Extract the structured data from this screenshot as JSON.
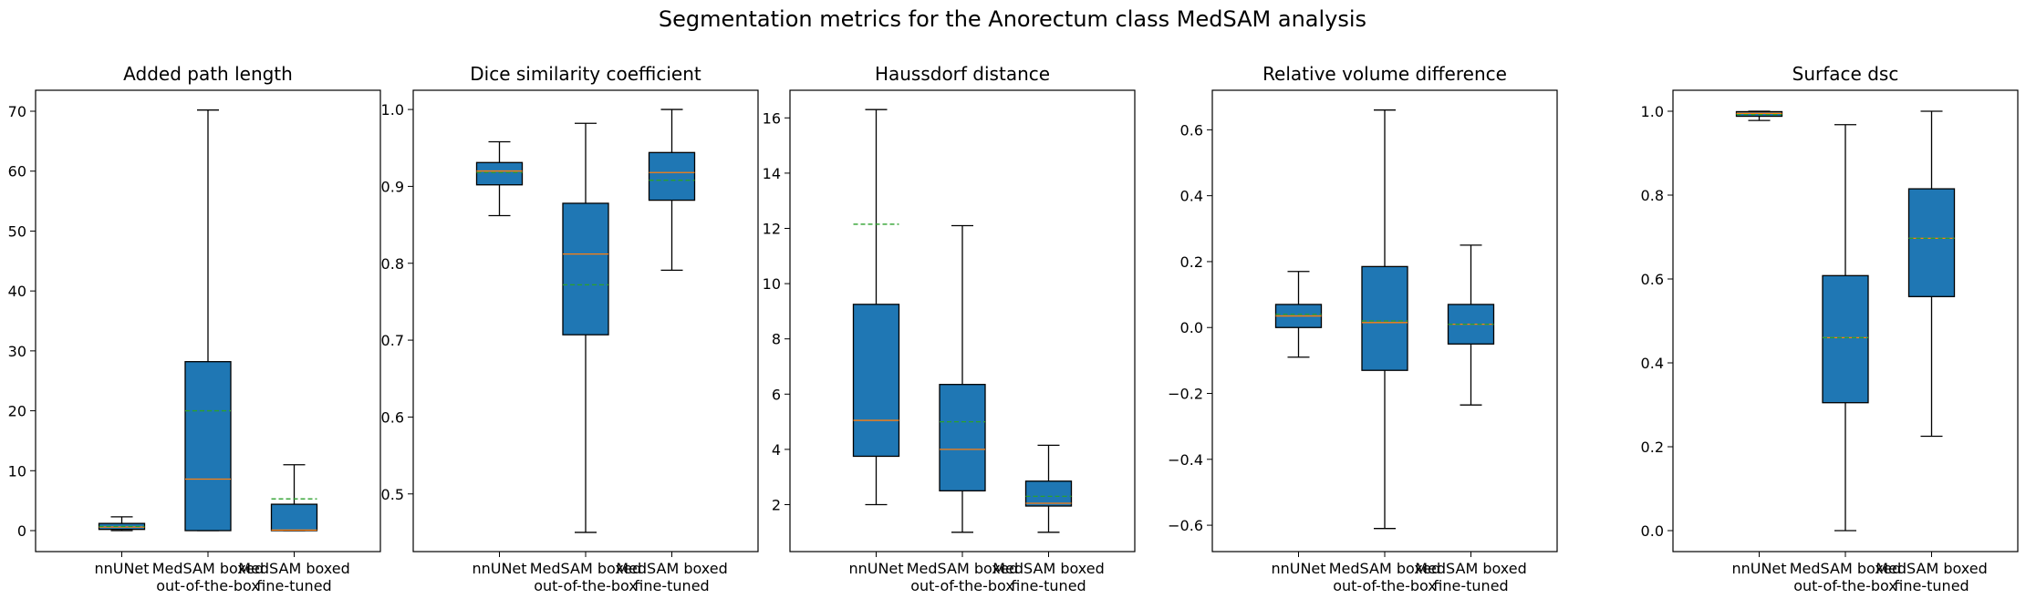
{
  "figure": {
    "title": "Segmentation metrics for the Anorectum class MedSAM analysis"
  },
  "colors": {
    "box_fill": "#1f77b4",
    "median": "#ff7f0e",
    "mean": "#2ca02c",
    "edge": "#000000"
  },
  "chart_data": [
    {
      "type": "box",
      "title": "Added path length",
      "categories": [
        "nnUNet",
        "MedSAM boxed\nout-of-the-box",
        "MedSAM boxed\nfine-tuned"
      ],
      "ylim": [
        -3.5,
        73.5
      ],
      "yticks": [
        0,
        10,
        20,
        30,
        40,
        50,
        60,
        70
      ],
      "boxes": [
        {
          "whisker_low": 0,
          "q1": 0.2,
          "median": 0.6,
          "q3": 1.2,
          "whisker_high": 2.3,
          "mean": 0.7
        },
        {
          "whisker_low": 0,
          "q1": 0,
          "median": 8.6,
          "q3": 28.2,
          "whisker_high": 70.2,
          "mean": 20.0
        },
        {
          "whisker_low": 0,
          "q1": 0,
          "median": 0.1,
          "q3": 4.4,
          "whisker_high": 11.0,
          "mean": 5.3
        }
      ]
    },
    {
      "type": "box",
      "title": "Dice similarity coefficient",
      "categories": [
        "nnUNet",
        "MedSAM boxed\nout-of-the-box",
        "MedSAM boxed\nfine-tuned"
      ],
      "ylim": [
        0.425,
        1.025
      ],
      "yticks": [
        0.5,
        0.6,
        0.7,
        0.8,
        0.9,
        1.0
      ],
      "ytick_labels": [
        "0.5",
        "0.6",
        "0.7",
        "0.8",
        "0.9",
        "1.0"
      ],
      "boxes": [
        {
          "whisker_low": 0.862,
          "q1": 0.902,
          "median": 0.92,
          "q3": 0.931,
          "whisker_high": 0.958,
          "mean": 0.918
        },
        {
          "whisker_low": 0.45,
          "q1": 0.707,
          "median": 0.812,
          "q3": 0.878,
          "whisker_high": 0.982,
          "mean": 0.772
        },
        {
          "whisker_low": 0.791,
          "q1": 0.882,
          "median": 0.918,
          "q3": 0.944,
          "whisker_high": 1.0,
          "mean": 0.908
        }
      ]
    },
    {
      "type": "box",
      "title": "Haussdorf distance",
      "categories": [
        "nnUNet",
        "MedSAM boxed\nout-of-the-box",
        "MedSAM boxed\nfine-tuned"
      ],
      "ylim": [
        0.3,
        17.0
      ],
      "yticks": [
        2,
        4,
        6,
        8,
        10,
        12,
        14,
        16
      ],
      "boxes": [
        {
          "whisker_low": 2.0,
          "q1": 3.75,
          "median": 5.05,
          "q3": 9.25,
          "whisker_high": 16.3,
          "mean": 12.15
        },
        {
          "whisker_low": 1.0,
          "q1": 2.5,
          "median": 4.0,
          "q3": 6.35,
          "whisker_high": 12.1,
          "mean": 5.0
        },
        {
          "whisker_low": 1.0,
          "q1": 1.95,
          "median": 2.05,
          "q3": 2.85,
          "whisker_high": 4.15,
          "mean": 2.3
        }
      ]
    },
    {
      "type": "box",
      "title": "Relative volume difference",
      "categories": [
        "nnUNet",
        "MedSAM boxed\nout-of-the-box",
        "MedSAM boxed\nfine-tuned"
      ],
      "ylim": [
        -0.68,
        0.72
      ],
      "yticks": [
        -0.6,
        -0.4,
        -0.2,
        0.0,
        0.2,
        0.4,
        0.6
      ],
      "ytick_labels": [
        "−0.6",
        "−0.4",
        "−0.2",
        "0.0",
        "0.2",
        "0.4",
        "0.6"
      ],
      "boxes": [
        {
          "whisker_low": -0.09,
          "q1": 0.0,
          "median": 0.035,
          "q3": 0.07,
          "whisker_high": 0.17,
          "mean": 0.04
        },
        {
          "whisker_low": -0.61,
          "q1": -0.13,
          "median": 0.015,
          "q3": 0.185,
          "whisker_high": 0.66,
          "mean": 0.02
        },
        {
          "whisker_low": -0.235,
          "q1": -0.05,
          "median": 0.01,
          "q3": 0.07,
          "whisker_high": 0.25,
          "mean": 0.01
        }
      ]
    },
    {
      "type": "box",
      "title": "Surface dsc",
      "categories": [
        "nnUNet",
        "MedSAM boxed\nout-of-the-box",
        "MedSAM boxed\nfine-tuned"
      ],
      "ylim": [
        -0.05,
        1.05
      ],
      "yticks": [
        0.0,
        0.2,
        0.4,
        0.6,
        0.8,
        1.0
      ],
      "ytick_labels": [
        "0.0",
        "0.2",
        "0.4",
        "0.6",
        "0.8",
        "1.0"
      ],
      "boxes": [
        {
          "whisker_low": 0.978,
          "q1": 0.988,
          "median": 0.995,
          "q3": 0.999,
          "whisker_high": 1.0,
          "mean": 0.992
        },
        {
          "whisker_low": 0.0,
          "q1": 0.305,
          "median": 0.46,
          "q3": 0.608,
          "whisker_high": 0.968,
          "mean": 0.46
        },
        {
          "whisker_low": 0.225,
          "q1": 0.558,
          "median": 0.697,
          "q3": 0.815,
          "whisker_high": 1.0,
          "mean": 0.697
        }
      ]
    }
  ]
}
